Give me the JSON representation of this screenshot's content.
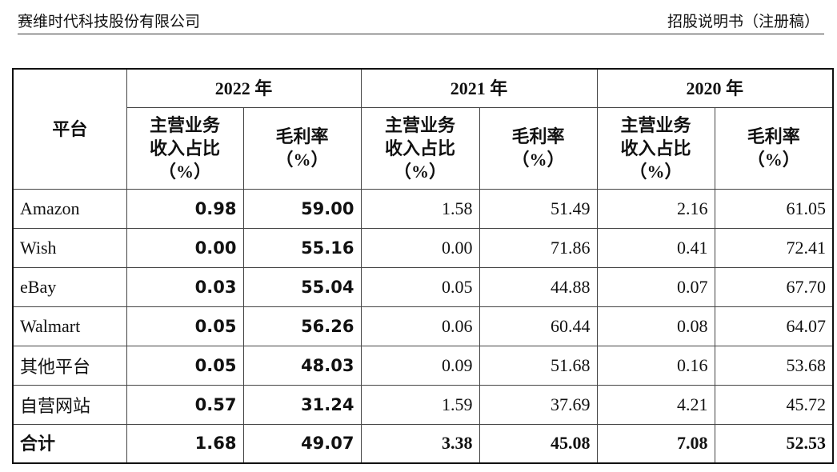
{
  "header": {
    "company": "赛维时代科技股份有限公司",
    "document": "招股说明书（注册稿）"
  },
  "table": {
    "platform_header": "平台",
    "years": [
      "2022 年",
      "2021 年",
      "2020 年"
    ],
    "subheaders": [
      [
        "主营业务",
        "收入占比",
        "（%）"
      ],
      [
        "毛利率",
        "（%）"
      ]
    ],
    "rows": [
      [
        "Amazon",
        "0.98",
        "59.00",
        "1.58",
        "51.49",
        "2.16",
        "61.05"
      ],
      [
        "Wish",
        "0.00",
        "55.16",
        "0.00",
        "71.86",
        "0.41",
        "72.41"
      ],
      [
        "eBay",
        "0.03",
        "55.04",
        "0.05",
        "44.88",
        "0.07",
        "67.70"
      ],
      [
        "Walmart",
        "0.05",
        "56.26",
        "0.06",
        "60.44",
        "0.08",
        "64.07"
      ],
      [
        "其他平台",
        "0.05",
        "48.03",
        "0.09",
        "51.68",
        "0.16",
        "53.68"
      ],
      [
        "自营网站",
        "0.57",
        "31.24",
        "1.59",
        "37.69",
        "4.21",
        "45.72"
      ],
      [
        "合计",
        "1.68",
        "49.07",
        "3.38",
        "45.08",
        "7.08",
        "52.53"
      ]
    ]
  }
}
